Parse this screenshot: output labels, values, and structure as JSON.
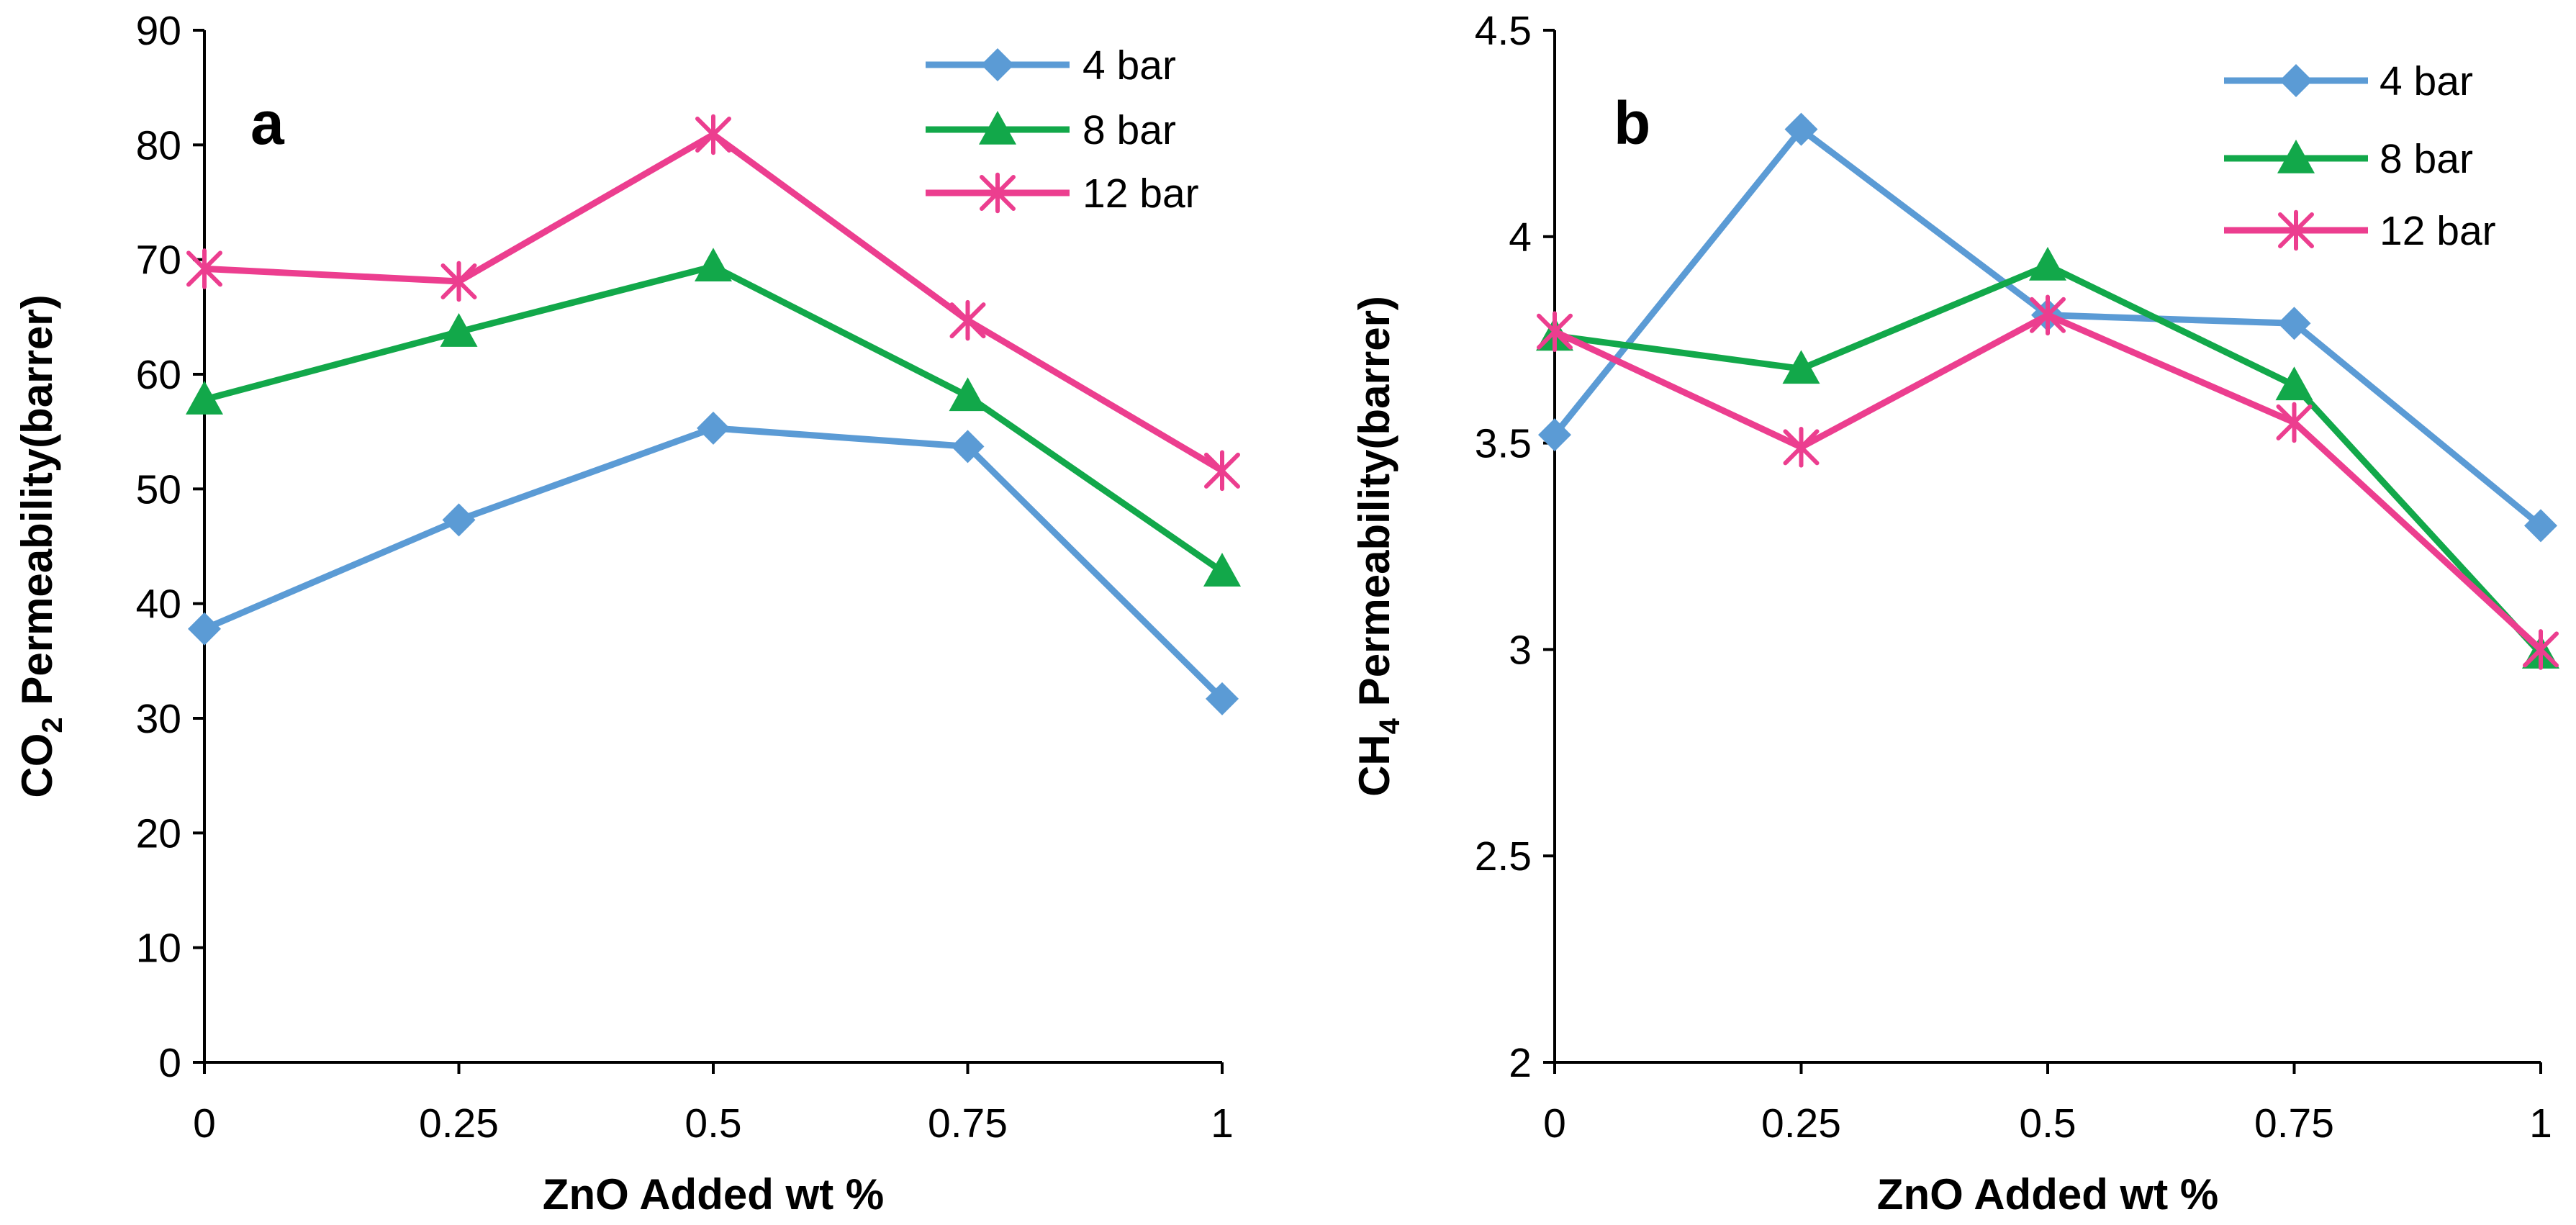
{
  "chart_data": [
    {
      "type": "line",
      "panel_label": "a",
      "xlabel": "ZnO Added wt %",
      "ylabel_main": "CO",
      "ylabel_sub": "2",
      "ylabel_rest": " Permeability(barrer)",
      "x": [
        0,
        0.25,
        0.5,
        0.75,
        1
      ],
      "x_tick_labels": [
        "0",
        "0.25",
        "0.5",
        "0.75",
        "1"
      ],
      "xlim": [
        0,
        1
      ],
      "ylim": [
        0,
        90
      ],
      "y_ticks": [
        0,
        10,
        20,
        30,
        40,
        50,
        60,
        70,
        80,
        90
      ],
      "y_tick_labels": [
        "0",
        "10",
        "20",
        "30",
        "40",
        "50",
        "60",
        "70",
        "80",
        "90"
      ],
      "grid": false,
      "legend_position": "top-right",
      "series": [
        {
          "name": "4 bar",
          "color": "#5B9BD5",
          "marker": "diamond",
          "values": [
            37.8,
            47.3,
            55.3,
            53.7,
            31.7
          ]
        },
        {
          "name": "8 bar",
          "color": "#12A84A",
          "marker": "triangle",
          "values": [
            57.8,
            63.7,
            69.4,
            58.1,
            42.8
          ]
        },
        {
          "name": "12 bar",
          "color": "#EC3E8F",
          "marker": "asterisk",
          "values": [
            69.2,
            68.1,
            80.9,
            64.7,
            51.6
          ]
        }
      ]
    },
    {
      "type": "line",
      "panel_label": "b",
      "xlabel": "ZnO Added wt %",
      "ylabel_main": "CH",
      "ylabel_sub": "4",
      "ylabel_rest": " Permeability(barrer)",
      "x": [
        0,
        0.25,
        0.5,
        0.75,
        1
      ],
      "x_tick_labels": [
        "0",
        "0.25",
        "0.5",
        "0.75",
        "1"
      ],
      "xlim": [
        0,
        1
      ],
      "ylim": [
        2,
        4.5
      ],
      "y_ticks": [
        2,
        2.5,
        3,
        3.5,
        4,
        4.5
      ],
      "y_tick_labels": [
        "2",
        "2.5",
        "3",
        "3.5",
        "4",
        "4.5"
      ],
      "grid": false,
      "legend_position": "top-right",
      "series": [
        {
          "name": "4 bar",
          "color": "#5B9BD5",
          "marker": "diamond",
          "values": [
            3.52,
            4.26,
            3.81,
            3.79,
            3.3
          ]
        },
        {
          "name": "8 bar",
          "color": "#12A84A",
          "marker": "triangle",
          "values": [
            3.76,
            3.68,
            3.93,
            3.64,
            2.99
          ]
        },
        {
          "name": "12 bar",
          "color": "#EC3E8F",
          "marker": "asterisk",
          "values": [
            3.77,
            3.49,
            3.81,
            3.55,
            3.0
          ]
        }
      ]
    }
  ]
}
